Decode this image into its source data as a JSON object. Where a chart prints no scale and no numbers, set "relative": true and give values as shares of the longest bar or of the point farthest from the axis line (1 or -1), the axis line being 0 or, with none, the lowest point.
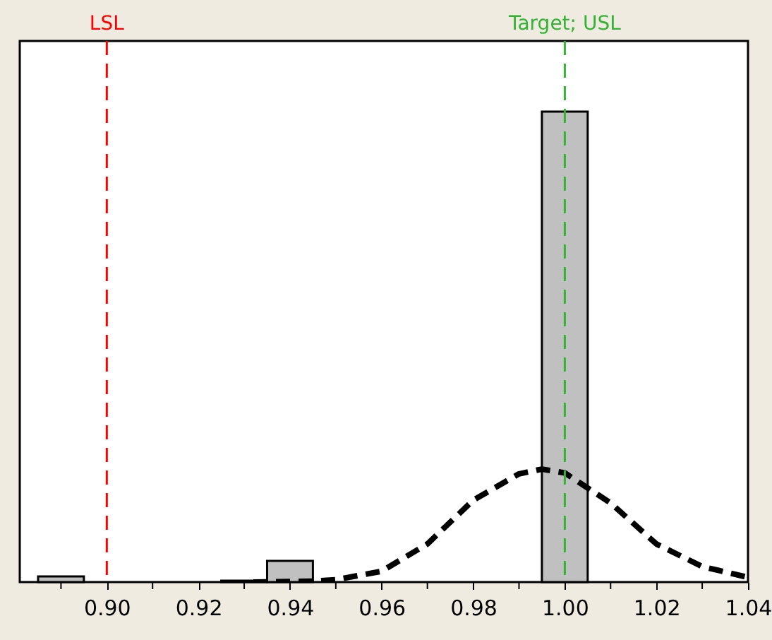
{
  "chart_data": {
    "type": "histogram",
    "relative": true,
    "color": "#c0c0c0",
    "bins": [
      0.885,
      0.895,
      0.905,
      0.915,
      0.925,
      0.935,
      0.945,
      0.955,
      0.965,
      0.975,
      0.985,
      0.995,
      1.005
    ],
    "values": [
      0.012,
      0,
      0,
      0,
      0.003,
      0.045,
      0,
      0,
      0,
      0,
      0,
      1
    ],
    "series": [
      {
        "type": "line",
        "color": "#000000",
        "line_style": "dashed",
        "x": [
          0.932,
          0.945,
          0.95,
          0.96,
          0.97,
          0.98,
          0.99,
          0.995,
          1.0,
          1.01,
          1.02,
          1.03,
          1.04
        ],
        "values": [
          0,
          0.002,
          0.005,
          0.023,
          0.081,
          0.174,
          0.23,
          0.24,
          0.232,
          0.168,
          0.081,
          0.033,
          0.01
        ]
      }
    ],
    "xlim": [
      0.881,
      1.04
    ],
    "xticks": [
      {
        "value": 0.89,
        "label": null
      },
      {
        "value": 0.9,
        "label": "0.90"
      },
      {
        "value": 0.91,
        "label": null
      },
      {
        "value": 0.92,
        "label": "0.92"
      },
      {
        "value": 0.93,
        "label": null
      },
      {
        "value": 0.94,
        "label": "0.94"
      },
      {
        "value": 0.95,
        "label": null
      },
      {
        "value": 0.96,
        "label": "0.96"
      },
      {
        "value": 0.97,
        "label": null
      },
      {
        "value": 0.98,
        "label": "0.98"
      },
      {
        "value": 0.99,
        "label": null
      },
      {
        "value": 1.0,
        "label": "1.00"
      },
      {
        "value": 1.01,
        "label": null
      },
      {
        "value": 1.02,
        "label": "1.02"
      },
      {
        "value": 1.03,
        "label": null
      },
      {
        "value": 1.04,
        "label": "1.04"
      }
    ],
    "ref_lines": [
      {
        "axis": "x",
        "value": 0.9,
        "label": "LSL",
        "color": "#ff0000",
        "line_style": "dashed"
      },
      {
        "axis": "x",
        "value": 1.0,
        "label": "Target; USL",
        "color": "#33b233",
        "line_style": "dashed"
      }
    ]
  }
}
